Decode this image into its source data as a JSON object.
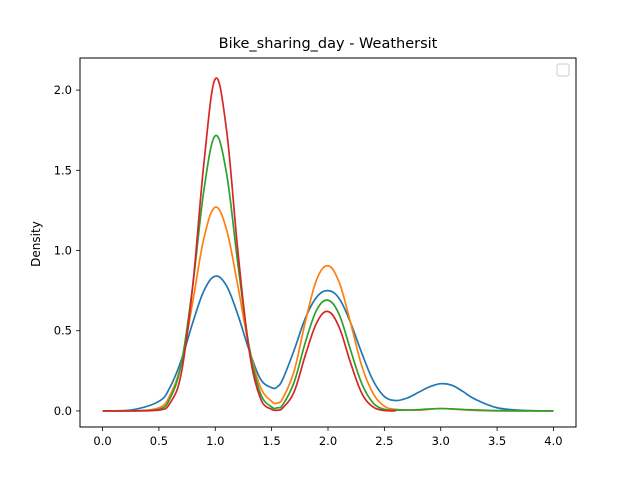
{
  "chart_data": {
    "type": "line",
    "title": "Bike_sharing_day - Weathersit",
    "xlabel": "",
    "ylabel": "Density",
    "xlim": [
      -0.2,
      4.2
    ],
    "ylim": [
      -0.1,
      2.2
    ],
    "x_ticks": [
      0.0,
      0.5,
      1.0,
      1.5,
      2.0,
      2.5,
      3.0,
      3.5,
      4.0
    ],
    "x_tick_labels": [
      "0.0",
      "0.5",
      "1.0",
      "1.5",
      "2.0",
      "2.5",
      "3.0",
      "3.5",
      "4.0"
    ],
    "y_ticks": [
      0.0,
      0.5,
      1.0,
      1.5,
      2.0
    ],
    "y_tick_labels": [
      "0.0",
      "0.5",
      "1.0",
      "1.5",
      "2.0"
    ],
    "grid": false,
    "legend": {
      "placement": "top-right",
      "entries": []
    },
    "series": [
      {
        "color": "#1f77b4",
        "x": [
          0.0,
          0.25,
          0.5,
          0.6,
          0.7,
          0.8,
          0.9,
          1.0,
          1.1,
          1.2,
          1.3,
          1.4,
          1.5,
          1.55,
          1.6,
          1.7,
          1.8,
          1.9,
          2.0,
          2.1,
          2.2,
          2.3,
          2.4,
          2.5,
          2.6,
          2.7,
          2.8,
          2.9,
          3.0,
          3.1,
          3.2,
          3.3,
          3.5,
          3.75,
          4.0
        ],
        "y": [
          0.0,
          0.005,
          0.06,
          0.15,
          0.32,
          0.55,
          0.75,
          0.84,
          0.78,
          0.6,
          0.38,
          0.2,
          0.145,
          0.15,
          0.2,
          0.38,
          0.58,
          0.71,
          0.75,
          0.7,
          0.55,
          0.36,
          0.19,
          0.09,
          0.065,
          0.08,
          0.115,
          0.15,
          0.17,
          0.16,
          0.12,
          0.075,
          0.02,
          0.003,
          0.0
        ]
      },
      {
        "color": "#ff7f0e",
        "x": [
          0.0,
          0.25,
          0.5,
          0.6,
          0.7,
          0.8,
          0.9,
          1.0,
          1.1,
          1.2,
          1.3,
          1.4,
          1.5,
          1.55,
          1.6,
          1.7,
          1.8,
          1.9,
          2.0,
          2.1,
          2.2,
          2.3,
          2.4,
          2.5,
          2.6,
          2.8,
          3.0,
          3.25,
          3.5,
          4.0
        ],
        "y": [
          0.0,
          0.0,
          0.02,
          0.1,
          0.3,
          0.68,
          1.08,
          1.27,
          1.13,
          0.78,
          0.4,
          0.15,
          0.06,
          0.05,
          0.08,
          0.25,
          0.56,
          0.82,
          0.905,
          0.8,
          0.55,
          0.28,
          0.11,
          0.03,
          0.01,
          0.005,
          0.015,
          0.005,
          0.0,
          0.0
        ]
      },
      {
        "color": "#2ca02c",
        "x": [
          0.0,
          0.25,
          0.5,
          0.6,
          0.7,
          0.8,
          0.9,
          1.0,
          1.1,
          1.2,
          1.3,
          1.4,
          1.5,
          1.55,
          1.6,
          1.7,
          1.8,
          1.9,
          2.0,
          2.1,
          2.2,
          2.3,
          2.4,
          2.5,
          2.6,
          2.8,
          3.0,
          3.25,
          3.5,
          4.0
        ],
        "y": [
          0.0,
          0.0,
          0.01,
          0.08,
          0.3,
          0.78,
          1.38,
          1.715,
          1.48,
          0.92,
          0.4,
          0.11,
          0.025,
          0.02,
          0.04,
          0.18,
          0.43,
          0.63,
          0.69,
          0.6,
          0.38,
          0.17,
          0.05,
          0.01,
          0.005,
          0.008,
          0.015,
          0.008,
          0.002,
          0.0
        ]
      },
      {
        "color": "#d62728",
        "x": [
          0.0,
          0.25,
          0.5,
          0.6,
          0.7,
          0.8,
          0.9,
          1.0,
          1.1,
          1.2,
          1.3,
          1.4,
          1.5,
          1.55,
          1.6,
          1.7,
          1.8,
          1.9,
          2.0,
          2.1,
          2.2,
          2.3,
          2.4,
          2.5,
          2.6
        ],
        "y": [
          0.0,
          0.0,
          0.005,
          0.05,
          0.24,
          0.78,
          1.55,
          2.07,
          1.75,
          1.0,
          0.38,
          0.08,
          0.01,
          0.005,
          0.02,
          0.12,
          0.35,
          0.55,
          0.62,
          0.52,
          0.3,
          0.11,
          0.025,
          0.003,
          0.0
        ]
      }
    ]
  }
}
